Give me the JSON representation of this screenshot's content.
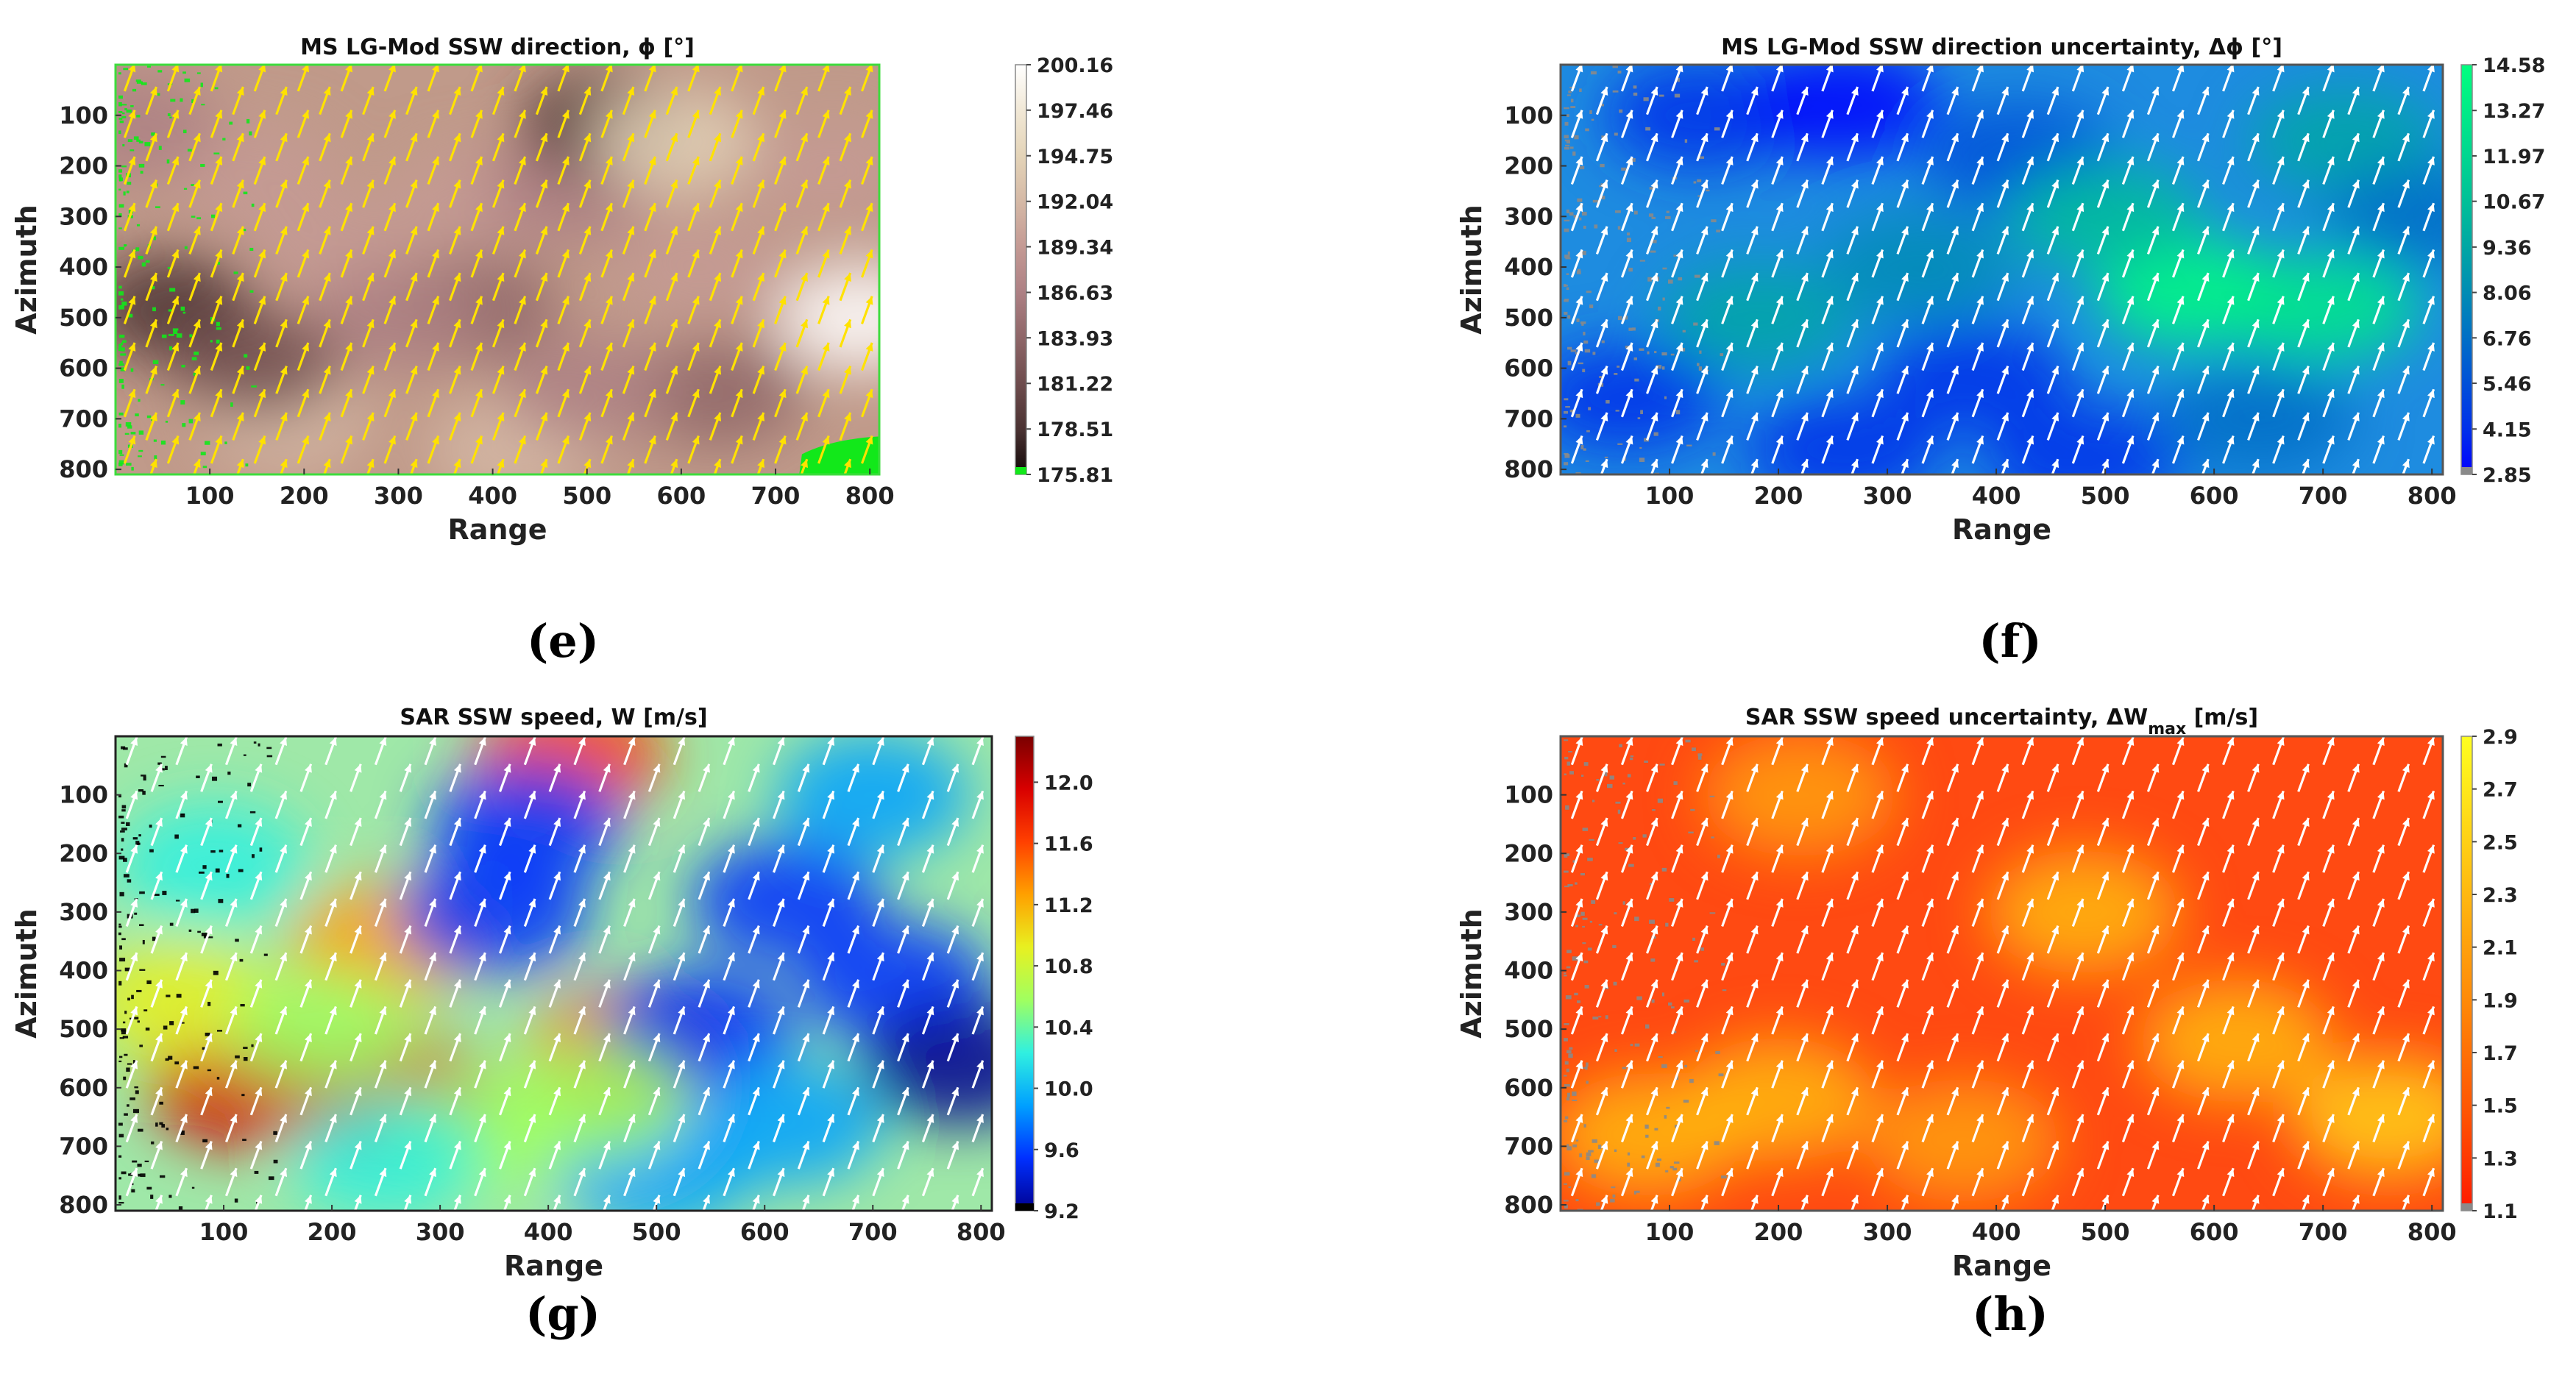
{
  "figure": {
    "panels": [
      {
        "id": "e",
        "label": "(e)",
        "title": "MS LG-Mod SSW direction, ϕ [°]",
        "xlabel": "Range",
        "ylabel": "Azimuth",
        "x_ticks": [
          "100",
          "200",
          "300",
          "400",
          "500",
          "600",
          "700",
          "800"
        ],
        "y_ticks": [
          "100",
          "200",
          "300",
          "400",
          "500",
          "600",
          "700",
          "800"
        ],
        "colorbar_ticks": [
          "200.16",
          "197.46",
          "194.75",
          "192.04",
          "189.34",
          "186.63",
          "183.93",
          "181.22",
          "178.51",
          "175.81"
        ],
        "colormap": [
          "#ffffff",
          "#f1e8d6",
          "#e4d4b8",
          "#d5b9a6",
          "#c49a94",
          "#ad8084",
          "#8e6668",
          "#6e4c4d",
          "#4a3232",
          "#120808"
        ],
        "under_color": "#12e81a",
        "base_color": "#c09a8a",
        "arrow_color": "#ffe200",
        "frame_color": "#3ddc3d",
        "background_mottling": [
          {
            "range": 60,
            "azimuth": 480,
            "level": 0.08
          },
          {
            "range": 150,
            "azimuth": 220,
            "level": 0.55
          },
          {
            "range": 230,
            "azimuth": 360,
            "level": 0.5
          },
          {
            "range": 380,
            "azimuth": 480,
            "level": 0.3
          },
          {
            "range": 300,
            "azimuth": 500,
            "level": 0.42
          },
          {
            "range": 380,
            "azimuth": 270,
            "level": 0.5
          },
          {
            "range": 480,
            "azimuth": 250,
            "level": 0.45
          },
          {
            "range": 520,
            "azimuth": 120,
            "level": 0.1
          },
          {
            "range": 180,
            "azimuth": 700,
            "level": 0.7
          },
          {
            "range": 150,
            "azimuth": 590,
            "level": 0.25
          },
          {
            "range": 590,
            "azimuth": 150,
            "level": 0.8
          },
          {
            "range": 620,
            "azimuth": 400,
            "level": 0.55
          },
          {
            "range": 640,
            "azimuth": 650,
            "level": 0.35
          },
          {
            "range": 790,
            "azimuth": 500,
            "level": 0.95
          },
          {
            "range": 760,
            "azimuth": 210,
            "level": 0.6
          },
          {
            "range": 420,
            "azimuth": 760,
            "level": 0.62
          },
          {
            "range": 500,
            "azimuth": 640,
            "level": 0.48
          },
          {
            "range": 20,
            "azimuth": 120,
            "level": 0.45
          }
        ]
      },
      {
        "id": "f",
        "label": "(f)",
        "title": "MS LG-Mod SSW direction uncertainty, Δϕ [°]",
        "xlabel": "Range",
        "ylabel": "Azimuth",
        "x_ticks": [
          "100",
          "200",
          "300",
          "400",
          "500",
          "600",
          "700",
          "800"
        ],
        "y_ticks": [
          "100",
          "200",
          "300",
          "400",
          "500",
          "600",
          "700",
          "800"
        ],
        "colorbar_ticks": [
          "14.58",
          "13.27",
          "11.97",
          "10.67",
          "9.36",
          "8.06",
          "6.76",
          "5.46",
          "4.15",
          "2.85"
        ],
        "colormap": [
          "#00ff7f",
          "#00eb87",
          "#00d690",
          "#00c098",
          "#00a7a4",
          "#008cb4",
          "#006fc6",
          "#0050d8",
          "#0030ea",
          "#0000ff"
        ],
        "under_color": "#8a8a8a",
        "base_color": "#1e8ce0",
        "arrow_color": "#ffffff",
        "frame_color": "#555555",
        "background_mottling": [
          {
            "range": 130,
            "azimuth": 100,
            "level": 0.15
          },
          {
            "range": 260,
            "azimuth": 80,
            "level": 0.05
          },
          {
            "range": 420,
            "azimuth": 180,
            "level": 0.2
          },
          {
            "range": 580,
            "azimuth": 450,
            "level": 0.95
          },
          {
            "range": 700,
            "azimuth": 480,
            "level": 0.85
          },
          {
            "range": 500,
            "azimuth": 300,
            "level": 0.7
          },
          {
            "range": 380,
            "azimuth": 620,
            "level": 0.1
          },
          {
            "range": 260,
            "azimuth": 760,
            "level": 0.08
          },
          {
            "range": 480,
            "azimuth": 780,
            "level": 0.12
          },
          {
            "range": 60,
            "azimuth": 660,
            "level": 0.15
          },
          {
            "range": 180,
            "azimuth": 500,
            "level": 0.6
          },
          {
            "range": 720,
            "azimuth": 150,
            "level": 0.55
          },
          {
            "range": 640,
            "azimuth": 700,
            "level": 0.3
          },
          {
            "range": 330,
            "azimuth": 400,
            "level": 0.45
          },
          {
            "range": 790,
            "azimuth": 300,
            "level": 0.35
          }
        ]
      },
      {
        "id": "g",
        "label": "(g)",
        "title": "SAR SSW speed, W [m/s]",
        "xlabel": "Range",
        "ylabel": "Azimuth",
        "x_ticks": [
          "100",
          "200",
          "300",
          "400",
          "500",
          "600",
          "700",
          "800"
        ],
        "y_ticks": [
          "100",
          "200",
          "300",
          "400",
          "500",
          "600",
          "700",
          "800"
        ],
        "colorbar_ticks": [
          "12.0",
          "11.6",
          "11.2",
          "10.8",
          "10.4",
          "10.0",
          "9.6",
          "9.2"
        ],
        "colormap": [
          "#7a0000",
          "#d80000",
          "#ff4000",
          "#ffa000",
          "#e8f020",
          "#a0ff60",
          "#30f0e0",
          "#00a0ff",
          "#0030ff",
          "#000090"
        ],
        "under_color": "#000000",
        "base_color": "#9fe8a8",
        "arrow_color": "#ffffff",
        "frame_color": "#222222",
        "background_mottling": [
          {
            "range": 120,
            "azimuth": 600,
            "level": 0.85
          },
          {
            "range": 260,
            "azimuth": 620,
            "level": 0.9
          },
          {
            "range": 470,
            "azimuth": 540,
            "level": 0.8
          },
          {
            "range": 420,
            "azimuth": 30,
            "level": 0.75
          },
          {
            "range": 250,
            "azimuth": 350,
            "level": 0.62
          },
          {
            "range": 60,
            "azimuth": 450,
            "level": 0.58
          },
          {
            "range": 190,
            "azimuth": 500,
            "level": 0.48
          },
          {
            "range": 90,
            "azimuth": 220,
            "level": 0.35
          },
          {
            "range": 380,
            "azimuth": 150,
            "level": 0.12
          },
          {
            "range": 350,
            "azimuth": 300,
            "level": 0.15
          },
          {
            "range": 620,
            "azimuth": 280,
            "level": 0.12
          },
          {
            "range": 540,
            "azimuth": 500,
            "level": 0.1
          },
          {
            "range": 720,
            "azimuth": 420,
            "level": 0.1
          },
          {
            "range": 780,
            "azimuth": 560,
            "level": 0.02
          },
          {
            "range": 700,
            "azimuth": 100,
            "level": 0.22
          },
          {
            "range": 500,
            "azimuth": 740,
            "level": 0.2
          },
          {
            "range": 620,
            "azimuth": 660,
            "level": 0.25
          },
          {
            "range": 330,
            "azimuth": 680,
            "level": 0.4
          },
          {
            "range": 250,
            "azimuth": 720,
            "level": 0.3
          },
          {
            "range": 440,
            "azimuth": 620,
            "level": 0.42
          }
        ]
      },
      {
        "id": "h",
        "label": "(h)",
        "title": "SAR SSW speed uncertainty, ΔW",
        "title_subscript": "max",
        "title_suffix": " [m/s]",
        "xlabel": "Range",
        "ylabel": "Azimuth",
        "x_ticks": [
          "100",
          "200",
          "300",
          "400",
          "500",
          "600",
          "700",
          "800"
        ],
        "y_ticks": [
          "100",
          "200",
          "300",
          "400",
          "500",
          "600",
          "700",
          "800"
        ],
        "colorbar_ticks": [
          "2.9",
          "2.7",
          "2.5",
          "2.3",
          "2.1",
          "1.9",
          "1.7",
          "1.5",
          "1.3",
          "1.1"
        ],
        "colormap": [
          "#ffff20",
          "#ffe81a",
          "#ffd015",
          "#ffb810",
          "#ffa00c",
          "#ff8a08",
          "#ff7006",
          "#ff5804",
          "#ff3a02",
          "#ff1800"
        ],
        "under_color": "#8a8a8a",
        "base_color": "#ff4a12",
        "arrow_color": "#ffffff",
        "frame_color": "#555555",
        "background_mottling": [
          {
            "range": 80,
            "azimuth": 680,
            "level": 0.62
          },
          {
            "range": 370,
            "azimuth": 690,
            "level": 0.6
          },
          {
            "range": 220,
            "azimuth": 100,
            "level": 0.6
          },
          {
            "range": 200,
            "azimuth": 620,
            "level": 0.68
          },
          {
            "range": 480,
            "azimuth": 300,
            "level": 0.7
          },
          {
            "range": 620,
            "azimuth": 520,
            "level": 0.72
          },
          {
            "range": 760,
            "azimuth": 650,
            "level": 0.78
          }
        ]
      }
    ]
  },
  "chart_data": [
    {
      "type": "heatmap",
      "panel": "(e)",
      "title": "MS LG-Mod SSW direction, ϕ [°]",
      "xlabel": "Range",
      "ylabel": "Azimuth",
      "xlim": [
        0,
        810
      ],
      "ylim": [
        810,
        0
      ],
      "colorbar": {
        "min": 175.81,
        "max": 200.16,
        "ticks": [
          200.16,
          197.46,
          194.75,
          192.04,
          189.34,
          186.63,
          183.93,
          181.22,
          178.51,
          175.81
        ]
      },
      "vector_field": {
        "color": "yellow",
        "direction_deg": 200,
        "approx_grid_spacing": 46
      }
    },
    {
      "type": "heatmap",
      "panel": "(f)",
      "title": "MS LG-Mod SSW direction uncertainty, Δϕ [°]",
      "xlabel": "Range",
      "ylabel": "Azimuth",
      "xlim": [
        0,
        810
      ],
      "ylim": [
        810,
        0
      ],
      "colorbar": {
        "min": 2.85,
        "max": 14.58,
        "ticks": [
          14.58,
          13.27,
          11.97,
          10.67,
          9.36,
          8.06,
          6.76,
          5.46,
          4.15,
          2.85
        ]
      },
      "vector_field": {
        "color": "white",
        "direction_deg": 200,
        "approx_grid_spacing": 46
      }
    },
    {
      "type": "heatmap",
      "panel": "(g)",
      "title": "SAR SSW speed, W [m/s]",
      "xlabel": "Range",
      "ylabel": "Azimuth",
      "xlim": [
        0,
        810
      ],
      "ylim": [
        810,
        0
      ],
      "colorbar": {
        "min": 9.2,
        "max": 12.3,
        "ticks": [
          12.0,
          11.6,
          11.2,
          10.8,
          10.4,
          10.0,
          9.6,
          9.2
        ]
      },
      "vector_field": {
        "color": "white",
        "direction_deg": 200,
        "approx_grid_spacing": 46
      }
    },
    {
      "type": "heatmap",
      "panel": "(h)",
      "title": "SAR SSW speed uncertainty, ΔWmax [m/s]",
      "xlabel": "Range",
      "ylabel": "Azimuth",
      "xlim": [
        0,
        810
      ],
      "ylim": [
        810,
        0
      ],
      "colorbar": {
        "min": 1.1,
        "max": 2.9,
        "ticks": [
          2.9,
          2.7,
          2.5,
          2.3,
          2.1,
          1.9,
          1.7,
          1.5,
          1.3,
          1.1
        ]
      },
      "vector_field": {
        "color": "white",
        "direction_deg": 200,
        "approx_grid_spacing": 46
      }
    }
  ]
}
